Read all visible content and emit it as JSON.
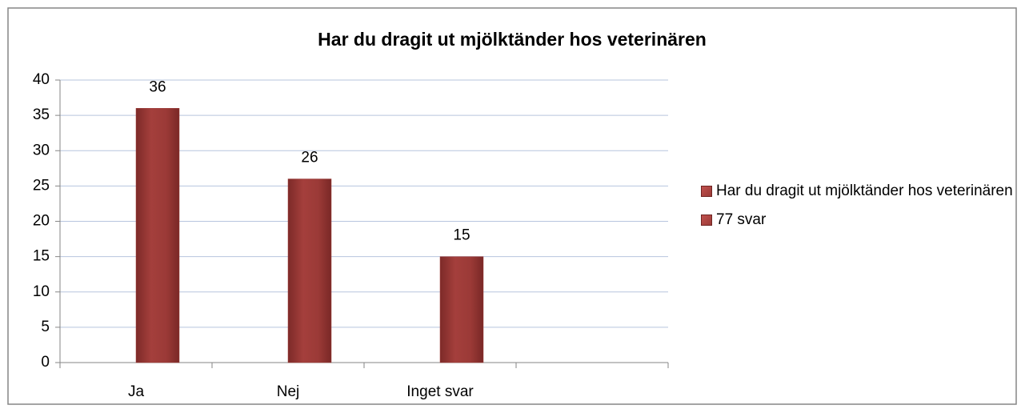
{
  "chart_data": {
    "type": "bar",
    "title": "Har du dragit ut mjölktänder hos veterinären",
    "categories": [
      "Ja",
      "Nej",
      "Inget svar",
      null
    ],
    "series": [
      {
        "name": "Har du dragit ut mjölktänder hos veterinären",
        "color": "#9b3a37",
        "values": [
          36,
          26,
          15,
          null
        ]
      },
      {
        "name": "77 svar",
        "color": "#9b3a37",
        "values": [
          null,
          null,
          null,
          null
        ]
      }
    ],
    "ylim": [
      0,
      40
    ],
    "yticks": [
      0,
      5,
      10,
      15,
      20,
      25,
      30,
      35,
      40
    ],
    "grid": true,
    "legend": "right"
  }
}
